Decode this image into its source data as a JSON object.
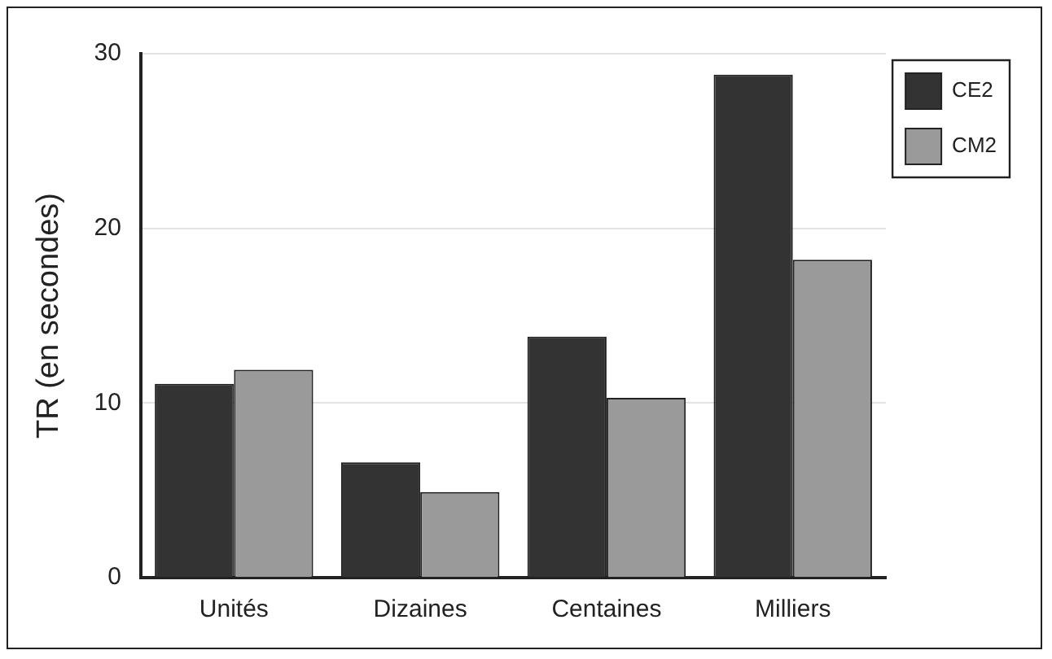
{
  "chart_data": {
    "type": "bar",
    "ylabel": "TR (en secondes)",
    "categories": [
      "Unités",
      "Dizaines",
      "Centaines",
      "Milliers"
    ],
    "series": [
      {
        "name": "CE2",
        "color": "#333333",
        "values": [
          11.1,
          6.6,
          13.8,
          28.8
        ]
      },
      {
        "name": "CM2",
        "color": "#9a9a9a",
        "values": [
          11.9,
          4.9,
          10.3,
          18.2
        ]
      }
    ],
    "ylim": [
      0,
      30
    ],
    "yticks": [
      0,
      10,
      20,
      30
    ],
    "grid": "y",
    "legend": "top right"
  }
}
